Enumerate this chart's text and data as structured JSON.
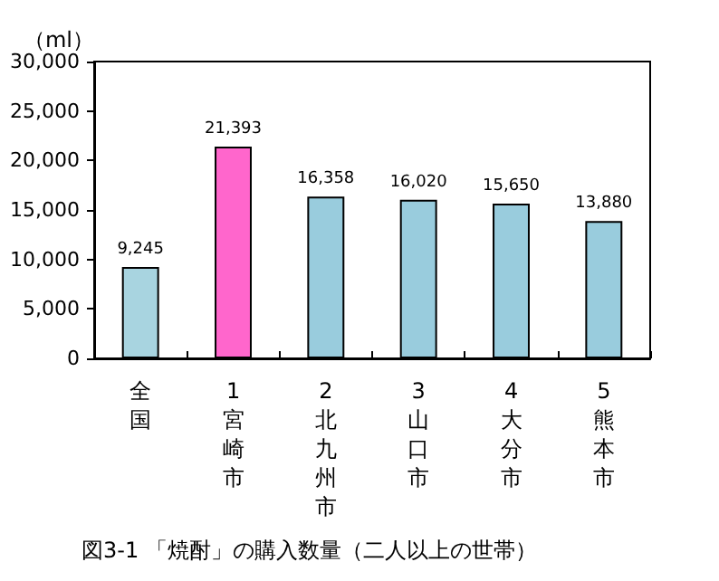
{
  "chart_data": {
    "type": "bar",
    "title": "図3-1 「焼酎」の購入数量（二人以上の世帯）",
    "ylabel": "（ml）",
    "categories": [
      "全国",
      "1宮崎市",
      "2北九州市",
      "3山口市",
      "4大分市",
      "5熊本市"
    ],
    "values": [
      9245,
      21393,
      16358,
      16020,
      15650,
      13880
    ],
    "value_labels": [
      "9,245",
      "21,393",
      "16,358",
      "16,020",
      "15,650",
      "13,880"
    ],
    "colors": [
      "#a8d4e0",
      "#ff66cc",
      "#99ccdd",
      "#99ccdd",
      "#99ccdd",
      "#99ccdd"
    ],
    "ylim": [
      0,
      30000
    ],
    "yticks": [
      0,
      {
        "value": 5000,
        "label": "5,000"
      },
      {
        "value": 10000,
        "label": "10,000"
      },
      {
        "value": 15000,
        "label": "15,000"
      },
      {
        "value": 20000,
        "label": "20,000"
      },
      {
        "value": 25000,
        "label": "25,000"
      },
      {
        "value": 30000,
        "label": "30,000"
      }
    ]
  }
}
